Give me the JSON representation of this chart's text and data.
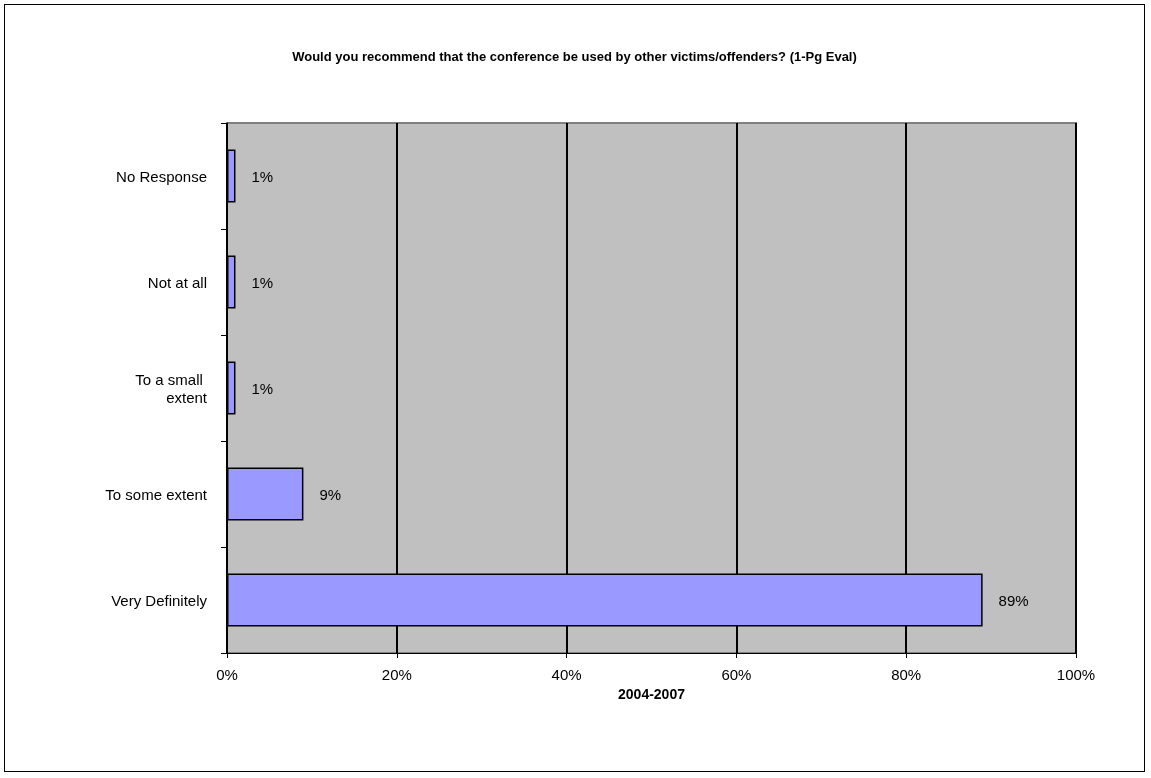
{
  "chart_data": {
    "type": "bar",
    "orientation": "horizontal",
    "title": "Would you recommend that the conference be used by other victims/offenders? (1-Pg Eval)",
    "xlabel": "2004-2007",
    "categories": [
      "No Response",
      "Not at all",
      "To a small extent",
      "To some extent",
      "Very Definitely"
    ],
    "values": [
      1,
      1,
      1,
      9,
      89
    ],
    "value_labels": [
      "1%",
      "1%",
      "1%",
      "9%",
      "89%"
    ],
    "color": "#9999ff",
    "xlim": [
      0,
      100
    ],
    "xticks": [
      {
        "value": 0,
        "label": "0%"
      },
      {
        "value": 20,
        "label": "20%"
      },
      {
        "value": 40,
        "label": "40%"
      },
      {
        "value": 60,
        "label": "60%"
      },
      {
        "value": 80,
        "label": "80%"
      },
      {
        "value": 100,
        "label": "100%"
      }
    ],
    "grid": "x"
  }
}
